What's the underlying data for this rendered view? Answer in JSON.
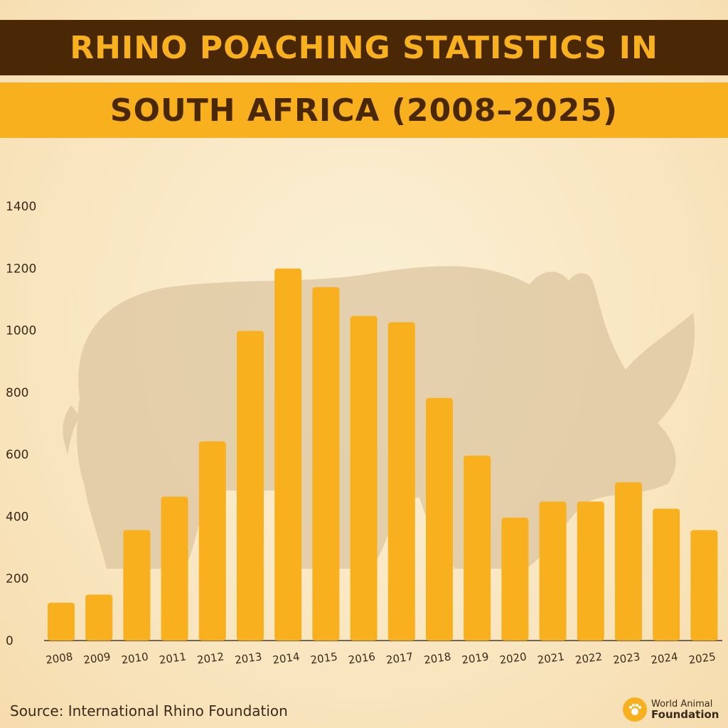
{
  "title": {
    "line1": "RHINO POACHING STATISTICS IN",
    "line2": "SOUTH AFRICA (2008–2025)"
  },
  "source": "Source: International Rhino Foundation",
  "logo": {
    "line1": "World Animal",
    "line2": "Foundation",
    "icon": "paw-icon"
  },
  "colors": {
    "bar": "#f8b01f",
    "dark_brown": "#4a2806",
    "background": "#fbf0d6",
    "rhino_silhouette": "#d9c4a0"
  },
  "chart_data": {
    "type": "bar",
    "title": "RHINO POACHING STATISTICS IN SOUTH AFRICA (2008–2025)",
    "xlabel": "",
    "ylabel": "",
    "categories": [
      "2008",
      "2009",
      "2010",
      "2011",
      "2012",
      "2013",
      "2014",
      "2015",
      "2016",
      "2017",
      "2018",
      "2019",
      "2020",
      "2021",
      "2022",
      "2023",
      "2024",
      "2025"
    ],
    "values": [
      122,
      148,
      356,
      464,
      642,
      998,
      1199,
      1139,
      1046,
      1026,
      782,
      596,
      396,
      448,
      448,
      510,
      425,
      356
    ],
    "yticks": [
      0,
      200,
      400,
      600,
      800,
      1000,
      1200,
      1400
    ],
    "ylim": [
      0,
      1400
    ],
    "grid": false,
    "legend": "none"
  }
}
